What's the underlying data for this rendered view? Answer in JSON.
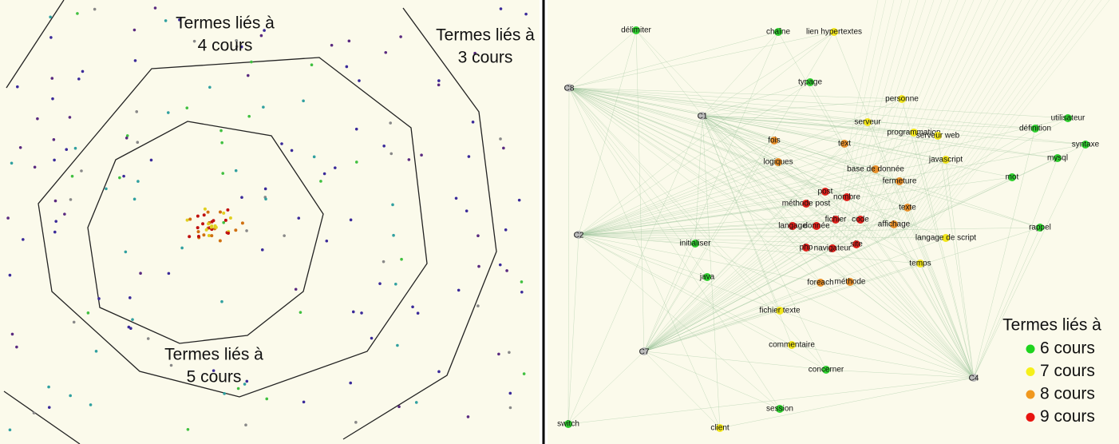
{
  "left_panel": {
    "annotations": [
      {
        "lines": [
          "Termes liés à",
          "4 cours"
        ]
      },
      {
        "lines": [
          "Termes liés à",
          "3 cours"
        ]
      },
      {
        "lines": [
          "Termes liés à",
          "5 cours"
        ]
      }
    ]
  },
  "right_panel": {
    "course_nodes": [
      {
        "label": "C8"
      },
      {
        "label": "C1"
      },
      {
        "label": "C2"
      },
      {
        "label": "C7"
      },
      {
        "label": "C4"
      }
    ],
    "term_nodes": [
      {
        "label": "délimiter",
        "color": "#2fd12f"
      },
      {
        "label": "chaîne",
        "color": "#2fd12f"
      },
      {
        "label": "lien hypertextes",
        "color": "#f2e61c"
      },
      {
        "label": "typage",
        "color": "#2fd12f"
      },
      {
        "label": "personne",
        "color": "#f2e61c"
      },
      {
        "label": "utilisateur",
        "color": "#2fd12f"
      },
      {
        "label": "serveur",
        "color": "#f2e61c"
      },
      {
        "label": "définition",
        "color": "#2fd12f"
      },
      {
        "label": "programmation",
        "color": "#f2e61c"
      },
      {
        "label": "serveur web",
        "color": "#f2e61c"
      },
      {
        "label": "fois",
        "color": "#e8902a"
      },
      {
        "label": "text",
        "color": "#e8902a"
      },
      {
        "label": "syntaxe",
        "color": "#2fd12f"
      },
      {
        "label": "mysql",
        "color": "#2fd12f"
      },
      {
        "label": "javascript",
        "color": "#f2e61c"
      },
      {
        "label": "logiques",
        "color": "#e8902a"
      },
      {
        "label": "base de donnée",
        "color": "#e8902a"
      },
      {
        "label": "mot",
        "color": "#2fd12f"
      },
      {
        "label": "fermeture",
        "color": "#e8902a"
      },
      {
        "label": "post",
        "color": "#e0201a"
      },
      {
        "label": "nombre",
        "color": "#e0201a"
      },
      {
        "label": "méthode post",
        "color": "#e0201a"
      },
      {
        "label": "texte",
        "color": "#e8902a"
      },
      {
        "label": "fichier",
        "color": "#e0201a"
      },
      {
        "label": "code",
        "color": "#e0201a"
      },
      {
        "label": "langage",
        "color": "#e0201a"
      },
      {
        "label": "donnée",
        "color": "#e0201a"
      },
      {
        "label": "affichage",
        "color": "#e8902a"
      },
      {
        "label": "rappel",
        "color": "#2fd12f"
      },
      {
        "label": "langage de script",
        "color": "#f2e61c"
      },
      {
        "label": "initialiser",
        "color": "#2fd12f"
      },
      {
        "label": "php",
        "color": "#e0201a"
      },
      {
        "label": "navigateur",
        "color": "#e0201a"
      },
      {
        "label": "site",
        "color": "#e0201a"
      },
      {
        "label": "temps",
        "color": "#f2e61c"
      },
      {
        "label": "java",
        "color": "#2fd12f"
      },
      {
        "label": "foreach",
        "color": "#e8902a"
      },
      {
        "label": "méthode",
        "color": "#e8902a"
      },
      {
        "label": "fichier texte",
        "color": "#f2e61c"
      },
      {
        "label": "commentaire",
        "color": "#f2e61c"
      },
      {
        "label": "concerner",
        "color": "#2fd12f"
      },
      {
        "label": "session",
        "color": "#2fd12f"
      },
      {
        "label": "switch",
        "color": "#2fd12f"
      },
      {
        "label": "client",
        "color": "#f2e61c"
      }
    ],
    "legend": {
      "title": "Termes liés à",
      "items": [
        {
          "label": "6 cours",
          "color": "#1ed41e"
        },
        {
          "label": "7 cours",
          "color": "#f5f01a"
        },
        {
          "label": "8 cours",
          "color": "#f0981e"
        },
        {
          "label": "9 cours",
          "color": "#e8140f"
        }
      ]
    }
  }
}
